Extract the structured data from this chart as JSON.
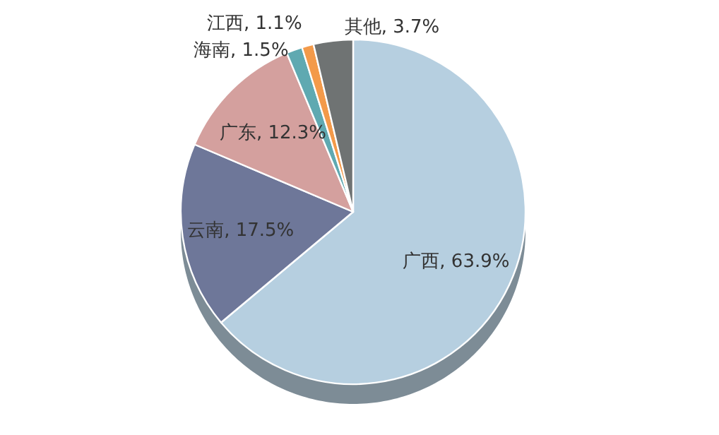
{
  "chart_data": {
    "type": "pie",
    "categories": [
      "广西",
      "云南",
      "广东",
      "海南",
      "江西",
      "其他"
    ],
    "values": [
      63.9,
      17.5,
      12.3,
      1.5,
      1.1,
      3.7
    ],
    "value_labels": [
      ", 63.9%",
      ", 17.5%",
      ", 12.3%",
      ", 1.5%",
      ", 1.1%",
      ", 3.7%"
    ],
    "colors": [
      "#b6cfe0",
      "#6e7799",
      "#d4a09e",
      "#5fa9b1",
      "#f39a4a",
      "#6f7373"
    ]
  }
}
